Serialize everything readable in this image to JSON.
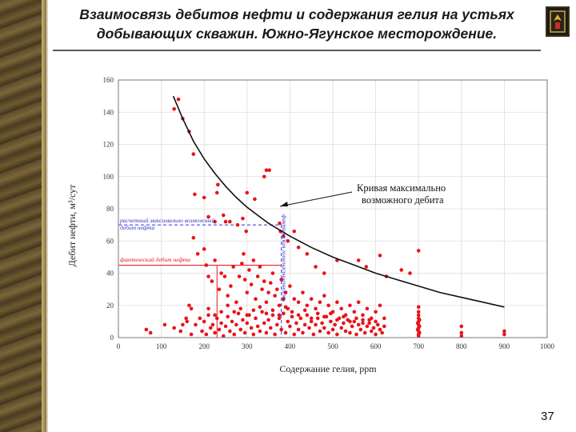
{
  "slide": {
    "title_line1": "Взаимосвязь дебитов нефти и содержания гелия на устьях",
    "title_line2": "добывающих скважин. Южно-Ягунское месторождение.",
    "page_number": "37"
  },
  "colors": {
    "points": "#e8141a",
    "curve": "#111111",
    "blue_guide": "#3333cc",
    "red_guide": "#e8141a"
  },
  "chart_data": {
    "type": "scatter",
    "xlabel": "Содержание гелия, ppm",
    "ylabel": "Дебит нефти, м³/сут",
    "xlim": [
      0,
      1000
    ],
    "ylim": [
      0,
      160
    ],
    "x_ticks": [
      "0",
      "100",
      "200",
      "300",
      "400",
      "500",
      "600",
      "700",
      "800",
      "900",
      "1000"
    ],
    "y_ticks": [
      "0",
      "20",
      "40",
      "60",
      "80",
      "100",
      "120",
      "140",
      "160"
    ],
    "curve_label_line1": "Кривая максимально",
    "curve_label_line2": "возможного дебита",
    "blue_label_line1": "расчетный максимально возможный",
    "blue_label_line2": "дебит нефти",
    "blue_vertical_label": "фактическая гелиенасыщенность",
    "red_label": "фактический дебит нефти",
    "guides": {
      "blue": {
        "x": 380,
        "y": 70
      },
      "red": {
        "x": 380,
        "y": 45
      },
      "red_x_start": 230
    },
    "curve": {
      "x": [
        128,
        150,
        175,
        200,
        225,
        250,
        275,
        300,
        325,
        350,
        375,
        400,
        450,
        500,
        550,
        600,
        650,
        700,
        750,
        800,
        850,
        900
      ],
      "y": [
        150,
        136,
        122,
        111,
        102,
        94,
        87,
        81,
        76,
        71,
        67,
        63,
        56,
        50,
        45,
        40,
        36,
        32,
        28,
        25,
        22,
        19
      ]
    },
    "points": [
      [
        130,
        142
      ],
      [
        140,
        148
      ],
      [
        150,
        136
      ],
      [
        165,
        128
      ],
      [
        175,
        114
      ],
      [
        178,
        89
      ],
      [
        200,
        87
      ],
      [
        210,
        75
      ],
      [
        225,
        72
      ],
      [
        230,
        90
      ],
      [
        232,
        95
      ],
      [
        245,
        76
      ],
      [
        250,
        72
      ],
      [
        260,
        72
      ],
      [
        278,
        70
      ],
      [
        290,
        74
      ],
      [
        298,
        66
      ],
      [
        300,
        90
      ],
      [
        318,
        86
      ],
      [
        340,
        100
      ],
      [
        345,
        104
      ],
      [
        352,
        104
      ],
      [
        376,
        71
      ],
      [
        378,
        66
      ],
      [
        385,
        63
      ],
      [
        395,
        60
      ],
      [
        410,
        66
      ],
      [
        420,
        56
      ],
      [
        440,
        52
      ],
      [
        460,
        44
      ],
      [
        480,
        40
      ],
      [
        510,
        48
      ],
      [
        560,
        48
      ],
      [
        578,
        44
      ],
      [
        610,
        51
      ],
      [
        625,
        38
      ],
      [
        700,
        54
      ],
      [
        660,
        42
      ],
      [
        680,
        40
      ],
      [
        65,
        5
      ],
      [
        75,
        3
      ],
      [
        108,
        8
      ],
      [
        150,
        8
      ],
      [
        158,
        12
      ],
      [
        165,
        20
      ],
      [
        170,
        18
      ],
      [
        175,
        62
      ],
      [
        185,
        52
      ],
      [
        200,
        55
      ],
      [
        205,
        45
      ],
      [
        210,
        38
      ],
      [
        218,
        35
      ],
      [
        225,
        48
      ],
      [
        235,
        30
      ],
      [
        240,
        40
      ],
      [
        248,
        38
      ],
      [
        255,
        26
      ],
      [
        262,
        32
      ],
      [
        268,
        44
      ],
      [
        275,
        22
      ],
      [
        282,
        38
      ],
      [
        288,
        46
      ],
      [
        292,
        52
      ],
      [
        295,
        36
      ],
      [
        300,
        28
      ],
      [
        305,
        42
      ],
      [
        310,
        33
      ],
      [
        315,
        48
      ],
      [
        320,
        24
      ],
      [
        325,
        38
      ],
      [
        330,
        44
      ],
      [
        335,
        30
      ],
      [
        340,
        35
      ],
      [
        345,
        22
      ],
      [
        350,
        28
      ],
      [
        355,
        34
      ],
      [
        360,
        40
      ],
      [
        365,
        26
      ],
      [
        370,
        30
      ],
      [
        375,
        20
      ],
      [
        380,
        36
      ],
      [
        385,
        24
      ],
      [
        390,
        28
      ],
      [
        395,
        18
      ],
      [
        400,
        32
      ],
      [
        410,
        24
      ],
      [
        420,
        22
      ],
      [
        430,
        28
      ],
      [
        440,
        20
      ],
      [
        450,
        24
      ],
      [
        460,
        18
      ],
      [
        470,
        22
      ],
      [
        480,
        26
      ],
      [
        490,
        20
      ],
      [
        500,
        16
      ],
      [
        510,
        22
      ],
      [
        520,
        18
      ],
      [
        530,
        14
      ],
      [
        540,
        20
      ],
      [
        550,
        16
      ],
      [
        560,
        22
      ],
      [
        570,
        14
      ],
      [
        580,
        18
      ],
      [
        590,
        12
      ],
      [
        600,
        16
      ],
      [
        610,
        20
      ],
      [
        620,
        12
      ],
      [
        130,
        6
      ],
      [
        145,
        4
      ],
      [
        160,
        10
      ],
      [
        170,
        2
      ],
      [
        180,
        8
      ],
      [
        190,
        12
      ],
      [
        195,
        4
      ],
      [
        200,
        10
      ],
      [
        205,
        2
      ],
      [
        210,
        14
      ],
      [
        215,
        6
      ],
      [
        220,
        8
      ],
      [
        225,
        3
      ],
      [
        230,
        12
      ],
      [
        235,
        5
      ],
      [
        240,
        9
      ],
      [
        245,
        1
      ],
      [
        250,
        7
      ],
      [
        255,
        13
      ],
      [
        260,
        4
      ],
      [
        265,
        10
      ],
      [
        270,
        2
      ],
      [
        275,
        8
      ],
      [
        280,
        15
      ],
      [
        285,
        5
      ],
      [
        290,
        11
      ],
      [
        295,
        3
      ],
      [
        300,
        9
      ],
      [
        305,
        14
      ],
      [
        310,
        6
      ],
      [
        315,
        2
      ],
      [
        320,
        12
      ],
      [
        325,
        7
      ],
      [
        330,
        4
      ],
      [
        335,
        16
      ],
      [
        340,
        9
      ],
      [
        345,
        3
      ],
      [
        350,
        11
      ],
      [
        355,
        6
      ],
      [
        360,
        14
      ],
      [
        365,
        2
      ],
      [
        370,
        8
      ],
      [
        375,
        12
      ],
      [
        380,
        5
      ],
      [
        385,
        15
      ],
      [
        390,
        3
      ],
      [
        395,
        10
      ],
      [
        400,
        7
      ],
      [
        405,
        13
      ],
      [
        410,
        2
      ],
      [
        415,
        9
      ],
      [
        420,
        5
      ],
      [
        425,
        12
      ],
      [
        430,
        3
      ],
      [
        435,
        8
      ],
      [
        440,
        14
      ],
      [
        445,
        6
      ],
      [
        450,
        10
      ],
      [
        455,
        2
      ],
      [
        460,
        8
      ],
      [
        465,
        12
      ],
      [
        470,
        4
      ],
      [
        475,
        9
      ],
      [
        480,
        6
      ],
      [
        485,
        13
      ],
      [
        490,
        3
      ],
      [
        495,
        10
      ],
      [
        500,
        5
      ],
      [
        505,
        8
      ],
      [
        510,
        2
      ],
      [
        515,
        12
      ],
      [
        520,
        6
      ],
      [
        525,
        9
      ],
      [
        530,
        4
      ],
      [
        535,
        11
      ],
      [
        540,
        3
      ],
      [
        545,
        7
      ],
      [
        550,
        10
      ],
      [
        555,
        2
      ],
      [
        560,
        8
      ],
      [
        565,
        5
      ],
      [
        570,
        11
      ],
      [
        575,
        3
      ],
      [
        580,
        7
      ],
      [
        585,
        9
      ],
      [
        590,
        4
      ],
      [
        595,
        6
      ],
      [
        600,
        2
      ],
      [
        605,
        8
      ],
      [
        610,
        5
      ],
      [
        615,
        3
      ],
      [
        620,
        7
      ],
      [
        210,
        18
      ],
      [
        225,
        14
      ],
      [
        240,
        16
      ],
      [
        255,
        20
      ],
      [
        270,
        16
      ],
      [
        285,
        18
      ],
      [
        300,
        14
      ],
      [
        315,
        17
      ],
      [
        330,
        19
      ],
      [
        345,
        15
      ],
      [
        360,
        17
      ],
      [
        375,
        14
      ],
      [
        390,
        19
      ],
      [
        405,
        16
      ],
      [
        420,
        14
      ],
      [
        435,
        17
      ],
      [
        450,
        12
      ],
      [
        465,
        15
      ],
      [
        480,
        13
      ],
      [
        495,
        15
      ],
      [
        510,
        11
      ],
      [
        525,
        13
      ],
      [
        540,
        10
      ],
      [
        555,
        12
      ],
      [
        570,
        9
      ],
      [
        585,
        11
      ],
      [
        600,
        10
      ],
      [
        700,
        2
      ],
      [
        700,
        4
      ],
      [
        700,
        6
      ],
      [
        700,
        8
      ],
      [
        700,
        10
      ],
      [
        700,
        12
      ],
      [
        700,
        14
      ],
      [
        700,
        16
      ],
      [
        700,
        19
      ],
      [
        700,
        1
      ],
      [
        702,
        3
      ],
      [
        702,
        7
      ],
      [
        702,
        11
      ],
      [
        698,
        5
      ],
      [
        698,
        9
      ],
      [
        800,
        1
      ],
      [
        800,
        7
      ],
      [
        800,
        3
      ],
      [
        900,
        2
      ],
      [
        900,
        4
      ]
    ]
  }
}
